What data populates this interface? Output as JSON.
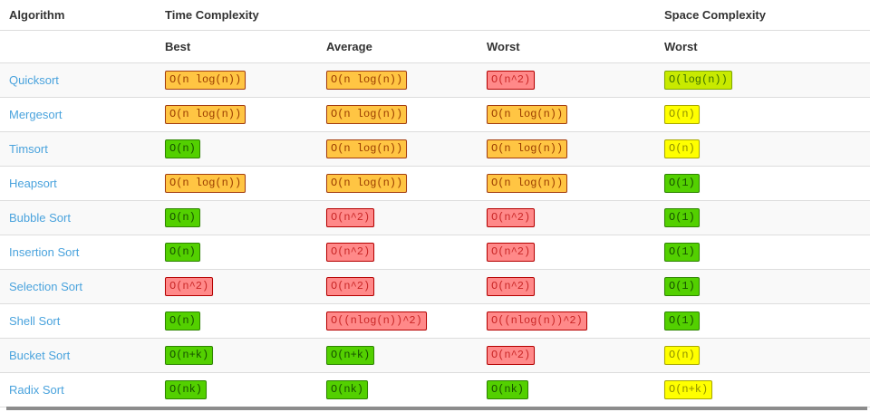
{
  "chart_data": {
    "type": "table",
    "header_row1": {
      "algorithm": "Algorithm",
      "time_complexity": "Time Complexity",
      "space_complexity": "Space Complexity"
    },
    "header_row2": {
      "best": "Best",
      "average": "Average",
      "worst": "Worst",
      "space_worst": "Worst"
    },
    "rows": [
      {
        "name": "Quicksort",
        "badges": [
          {
            "label": "O(n log(n))",
            "rating": "orange"
          },
          {
            "label": "O(n log(n))",
            "rating": "orange"
          },
          {
            "label": "O(n^2)",
            "rating": "red"
          },
          {
            "label": "O(log(n))",
            "rating": "yellowgreen"
          }
        ]
      },
      {
        "name": "Mergesort",
        "badges": [
          {
            "label": "O(n log(n))",
            "rating": "orange"
          },
          {
            "label": "O(n log(n))",
            "rating": "orange"
          },
          {
            "label": "O(n log(n))",
            "rating": "orange"
          },
          {
            "label": "O(n)",
            "rating": "yellow"
          }
        ]
      },
      {
        "name": "Timsort",
        "badges": [
          {
            "label": "O(n)",
            "rating": "green"
          },
          {
            "label": "O(n log(n))",
            "rating": "orange"
          },
          {
            "label": "O(n log(n))",
            "rating": "orange"
          },
          {
            "label": "O(n)",
            "rating": "yellow"
          }
        ]
      },
      {
        "name": "Heapsort",
        "badges": [
          {
            "label": "O(n log(n))",
            "rating": "orange"
          },
          {
            "label": "O(n log(n))",
            "rating": "orange"
          },
          {
            "label": "O(n log(n))",
            "rating": "orange"
          },
          {
            "label": "O(1)",
            "rating": "green"
          }
        ]
      },
      {
        "name": "Bubble Sort",
        "badges": [
          {
            "label": "O(n)",
            "rating": "green"
          },
          {
            "label": "O(n^2)",
            "rating": "red"
          },
          {
            "label": "O(n^2)",
            "rating": "red"
          },
          {
            "label": "O(1)",
            "rating": "green"
          }
        ]
      },
      {
        "name": "Insertion Sort",
        "badges": [
          {
            "label": "O(n)",
            "rating": "green"
          },
          {
            "label": "O(n^2)",
            "rating": "red"
          },
          {
            "label": "O(n^2)",
            "rating": "red"
          },
          {
            "label": "O(1)",
            "rating": "green"
          }
        ]
      },
      {
        "name": "Selection Sort",
        "badges": [
          {
            "label": "O(n^2)",
            "rating": "red"
          },
          {
            "label": "O(n^2)",
            "rating": "red"
          },
          {
            "label": "O(n^2)",
            "rating": "red"
          },
          {
            "label": "O(1)",
            "rating": "green"
          }
        ]
      },
      {
        "name": "Shell Sort",
        "badges": [
          {
            "label": "O(n)",
            "rating": "green"
          },
          {
            "label": "O((nlog(n))^2)",
            "rating": "red"
          },
          {
            "label": "O((nlog(n))^2)",
            "rating": "red"
          },
          {
            "label": "O(1)",
            "rating": "green"
          }
        ]
      },
      {
        "name": "Bucket Sort",
        "badges": [
          {
            "label": "O(n+k)",
            "rating": "green"
          },
          {
            "label": "O(n+k)",
            "rating": "green"
          },
          {
            "label": "O(n^2)",
            "rating": "red"
          },
          {
            "label": "O(n)",
            "rating": "yellow"
          }
        ]
      },
      {
        "name": "Radix Sort",
        "badges": [
          {
            "label": "O(nk)",
            "rating": "green"
          },
          {
            "label": "O(nk)",
            "rating": "green"
          },
          {
            "label": "O(nk)",
            "rating": "green"
          },
          {
            "label": "O(n+k)",
            "rating": "yellow"
          }
        ]
      }
    ]
  },
  "colors": {
    "link": "#4aa3dd",
    "header_text": "#333333",
    "row_border": "#dddddd",
    "stripe_bg": "#f9f9f9",
    "bottom_bar": "#8c8c8c",
    "ratings": {
      "green": {
        "bg": "#53d000",
        "border": "#2d8500",
        "text": "#175000"
      },
      "yellowgreen": {
        "bg": "#c8ea00",
        "border": "#7fa800",
        "text": "#3c7000"
      },
      "yellow": {
        "bg": "#ffff00",
        "border": "#a8a800",
        "text": "#8f8f00"
      },
      "orange": {
        "bg": "#ffc543",
        "border": "#a33d10",
        "text": "#9b3c00"
      },
      "red": {
        "bg": "#ff8989",
        "border": "#b50000",
        "text": "#ca2727"
      }
    }
  }
}
